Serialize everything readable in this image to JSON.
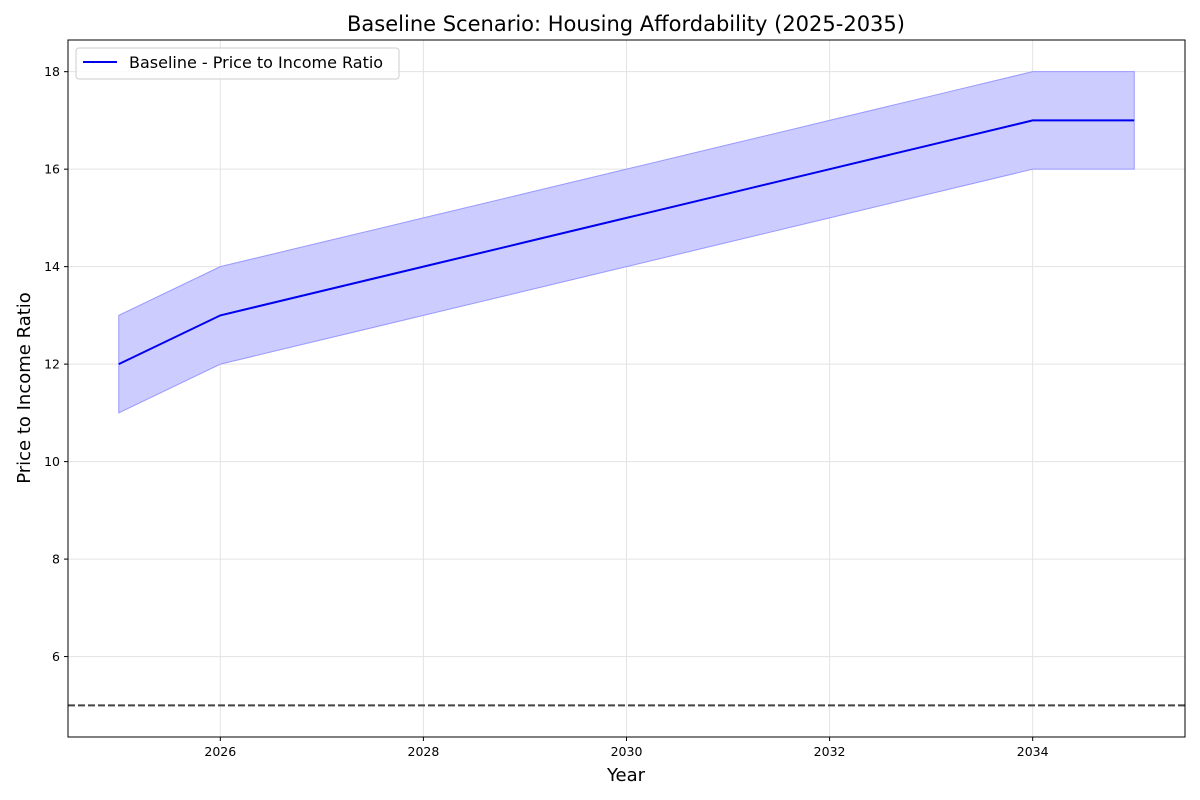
{
  "chart_data": {
    "type": "line",
    "title": "Baseline Scenario: Housing Affordability (2025-2035)",
    "xlabel": "Year",
    "ylabel": "Price to Income Ratio",
    "xlim": [
      2024.5,
      2035.5
    ],
    "ylim": [
      4.35,
      18.65
    ],
    "x_ticks": [
      2026,
      2028,
      2030,
      2032,
      2034
    ],
    "y_ticks": [
      6,
      8,
      10,
      12,
      14,
      16,
      18
    ],
    "grid": true,
    "legend_position": "top-left",
    "series": [
      {
        "name": "Baseline - Price to Income Ratio",
        "color": "#0000ee",
        "x": [
          2025,
          2026,
          2027,
          2028,
          2029,
          2030,
          2031,
          2032,
          2033,
          2034,
          2035
        ],
        "values": [
          12,
          13,
          13.5,
          14,
          14.5,
          15,
          15.5,
          16,
          16.5,
          17,
          17
        ],
        "lower": [
          11,
          12,
          12.5,
          13,
          13.5,
          14,
          14.5,
          15,
          15.5,
          16,
          16
        ],
        "upper": [
          13,
          14,
          14.5,
          15,
          15.5,
          16,
          16.5,
          17,
          17.5,
          18,
          18
        ],
        "band_color": "#ccccff"
      }
    ],
    "reference_line": {
      "y": 5,
      "style": "dashed",
      "color": "#444444"
    }
  }
}
